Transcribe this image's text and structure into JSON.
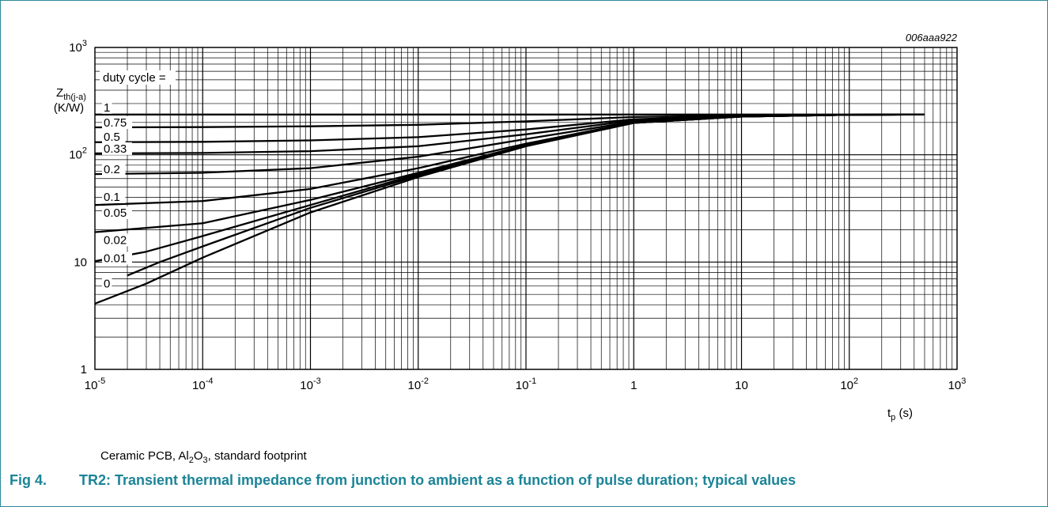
{
  "figure_id": "006aaa922",
  "caption": {
    "fig_number": "Fig 4.",
    "text": "TR2: Transient thermal impedance from junction to ambient as a function of pulse duration; typical values"
  },
  "note": {
    "parts": [
      "Ceramic PCB, Al",
      "2",
      "O",
      "3",
      ", standard footprint"
    ]
  },
  "colors": {
    "border": "#2d8a9a",
    "caption": "#1b8497",
    "curves": "#000000",
    "grid": "#000000"
  },
  "chart_data": {
    "type": "line",
    "xscale": "log",
    "yscale": "log",
    "xlim": [
      1e-05,
      1000
    ],
    "ylim": [
      1,
      1000
    ],
    "grid": true,
    "xlabel": {
      "main": "t",
      "sub": "p",
      "unit": "(s)"
    },
    "ylabel": {
      "main": "Z",
      "sub": "th(j-a)",
      "unit": "(K/W)"
    },
    "x_ticks": [
      {
        "value": 1e-05,
        "label": "10",
        "exp": "-5"
      },
      {
        "value": 0.0001,
        "label": "10",
        "exp": "-4"
      },
      {
        "value": 0.001,
        "label": "10",
        "exp": "-3"
      },
      {
        "value": 0.01,
        "label": "10",
        "exp": "-2"
      },
      {
        "value": 0.1,
        "label": "10",
        "exp": "-1"
      },
      {
        "value": 1,
        "label": "1",
        "exp": ""
      },
      {
        "value": 10,
        "label": "10",
        "exp": ""
      },
      {
        "value": 100,
        "label": "10",
        "exp": "2"
      },
      {
        "value": 1000,
        "label": "10",
        "exp": "3"
      }
    ],
    "y_ticks": [
      {
        "value": 1,
        "label": "1",
        "exp": ""
      },
      {
        "value": 10,
        "label": "10",
        "exp": ""
      },
      {
        "value": 100,
        "label": "10",
        "exp": "2"
      },
      {
        "value": 1000,
        "label": "10",
        "exp": "3"
      }
    ],
    "legend_title": "duty cycle =",
    "series": [
      {
        "name": "1",
        "x": [
          1e-05,
          0.0001,
          0.001,
          0.01,
          0.1,
          1,
          10,
          100,
          500
        ],
        "y": [
          237,
          237,
          237,
          237,
          237,
          237,
          237,
          237,
          237
        ]
      },
      {
        "name": "0.75",
        "x": [
          1e-05,
          0.0001,
          0.001,
          0.01,
          0.1,
          1,
          10,
          100,
          500
        ],
        "y": [
          180,
          181,
          184,
          190,
          205,
          225,
          232,
          236,
          237
        ]
      },
      {
        "name": "0.5",
        "x": [
          1e-05,
          0.0001,
          0.001,
          0.01,
          0.1,
          1,
          10,
          100,
          500
        ],
        "y": [
          131,
          132,
          136,
          146,
          172,
          214,
          230,
          236,
          237
        ]
      },
      {
        "name": "0.33",
        "x": [
          1e-05,
          0.0001,
          0.001,
          0.01,
          0.1,
          1,
          10,
          100,
          500
        ],
        "y": [
          103,
          104,
          108,
          120,
          155,
          209,
          229,
          236,
          237
        ]
      },
      {
        "name": "0.2",
        "x": [
          1e-05,
          0.0001,
          0.001,
          0.01,
          0.1,
          1,
          10,
          100,
          500
        ],
        "y": [
          66,
          68,
          75,
          96,
          140,
          204,
          228,
          236,
          237
        ]
      },
      {
        "name": "0.1",
        "x": [
          1e-05,
          0.0001,
          0.001,
          0.01,
          0.1,
          1,
          10,
          100,
          500
        ],
        "y": [
          34,
          37,
          48,
          75,
          127,
          200,
          227,
          236,
          237
        ]
      },
      {
        "name": "0.05",
        "x": [
          1e-05,
          0.0001,
          0.001,
          0.01,
          0.1,
          1,
          10,
          100,
          500
        ],
        "y": [
          19,
          23,
          38,
          68,
          123,
          199,
          227,
          236,
          237
        ]
      },
      {
        "name": "0.02",
        "x": [
          1e-05,
          3e-05,
          0.0001,
          0.001,
          0.01,
          0.1,
          1,
          10,
          100,
          500
        ],
        "y": [
          10.2,
          12.5,
          17.5,
          34,
          66,
          122,
          198,
          227,
          236,
          237
        ]
      },
      {
        "name": "0.01",
        "x": [
          2e-05,
          4e-05,
          0.0001,
          0.001,
          0.01,
          0.1,
          1,
          10,
          100,
          500
        ],
        "y": [
          7.5,
          10,
          14,
          32,
          64,
          121,
          198,
          227,
          236,
          237
        ]
      },
      {
        "name": "0",
        "x": [
          1e-05,
          3e-05,
          0.0001,
          0.001,
          0.01,
          0.1,
          1,
          10,
          100,
          500
        ],
        "y": [
          4.1,
          6.3,
          11,
          29,
          62,
          120,
          198,
          227,
          236,
          237
        ]
      }
    ]
  }
}
